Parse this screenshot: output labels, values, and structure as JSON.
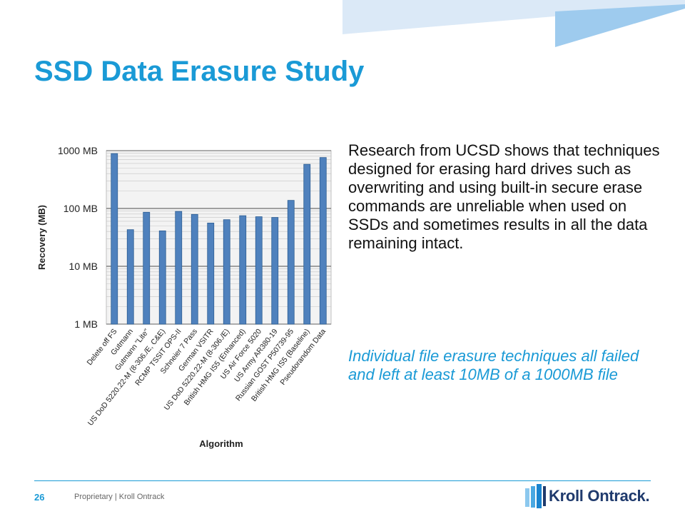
{
  "slide": {
    "title": "SSD Data Erasure Study",
    "body": "Research from UCSD shows that techniques designed for erasing hard drives such as overwriting and using built-in secure erase commands are unreliable when used on SSDs and sometimes results in all the data remaining intact.",
    "highlight": "Individual file erasure techniques all failed and left at least 10MB of a 1000MB file"
  },
  "footer": {
    "page_number": "26",
    "text": "Proprietary | Kroll Ontrack",
    "logo_text": "Kroll Ontrack."
  },
  "colors": {
    "accent": "#1a9ad6",
    "bar_fill": "#4f81bd",
    "bar_stroke": "#2e5f93",
    "logo_text": "#1f3a6d",
    "decor_light": "#dbe9f7",
    "decor_mid": "#9ecbee"
  },
  "chart_data": {
    "type": "bar",
    "xlabel": "Algorithm",
    "ylabel": "Recovery (MB)",
    "yscale": "log",
    "ylim": [
      1,
      1000
    ],
    "yticks": [
      1,
      10,
      100,
      1000
    ],
    "yticklabels": [
      "1 MB",
      "10 MB",
      "100 MB",
      "1000 MB"
    ],
    "grid": true,
    "categories": [
      "Delete off FS",
      "Gutmann",
      "Gutmann \"Lite\"",
      "US DoD 5220.22-M (8-306./E, C&E)",
      "RCMP TSSIT OPS-II",
      "Schneier 7 Pass",
      "German VSITR",
      "US DoD 5220.22-M (8-306./E)",
      "British HMG IS5 (Enhanced)",
      "US Air Force 5020",
      "US Army AR380-19",
      "Russian GOST P50739-95",
      "British HMG IS5 (Baseline)",
      "Pseudorandom Data"
    ],
    "values": [
      890,
      43,
      86,
      41,
      89,
      79,
      56,
      64,
      75,
      72,
      70,
      138,
      580,
      760
    ]
  }
}
